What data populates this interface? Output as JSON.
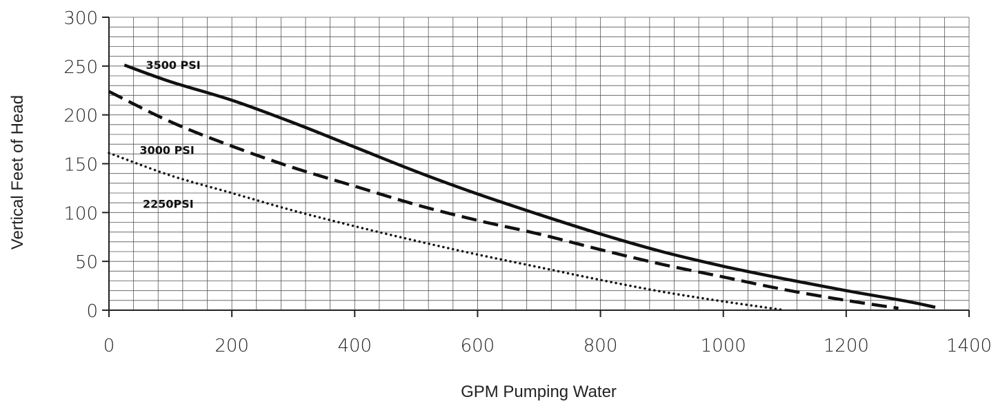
{
  "chart_data": {
    "type": "line",
    "title": "",
    "xlabel": "GPM Pumping Water",
    "ylabel": "Vertical Feet of Head",
    "xlim": [
      0,
      1400
    ],
    "ylim": [
      0,
      300
    ],
    "x_ticks": [
      0,
      200,
      400,
      600,
      800,
      1000,
      1200,
      1400
    ],
    "y_ticks": [
      0,
      50,
      100,
      150,
      200,
      250,
      300
    ],
    "grid": true,
    "legend": "none",
    "series": [
      {
        "name": "3500 PSI",
        "line_style": "solid",
        "color": "#111111",
        "x": [
          25,
          100,
          200,
          300,
          400,
          500,
          600,
          700,
          800,
          900,
          1000,
          1100,
          1200,
          1300,
          1345
        ],
        "y": [
          251,
          234,
          215,
          192,
          167,
          142,
          119,
          98,
          78,
          60,
          45,
          32,
          20,
          9,
          3
        ]
      },
      {
        "name": "3000 PSI",
        "line_style": "dashed",
        "color": "#111111",
        "x": [
          0,
          100,
          200,
          300,
          400,
          500,
          600,
          700,
          800,
          900,
          1000,
          1100,
          1200,
          1285
        ],
        "y": [
          224,
          193,
          168,
          146,
          127,
          108,
          92,
          78,
          62,
          47,
          34,
          21,
          10,
          2
        ]
      },
      {
        "name": "2250PSI",
        "line_style": "dotted",
        "color": "#111111",
        "x": [
          0,
          100,
          200,
          300,
          400,
          500,
          600,
          700,
          800,
          900,
          1000,
          1100
        ],
        "y": [
          161,
          138,
          120,
          102,
          86,
          71,
          57,
          44,
          31,
          19,
          9,
          0
        ]
      }
    ]
  }
}
